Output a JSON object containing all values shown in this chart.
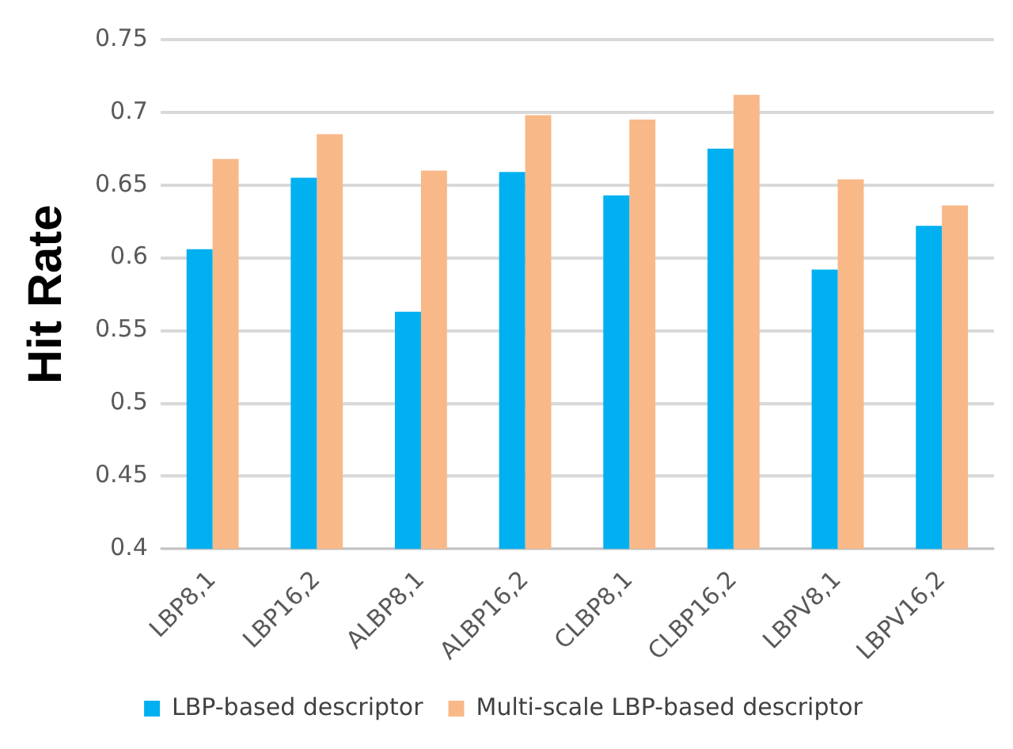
{
  "chart_data": {
    "type": "bar",
    "ylabel": "Hit Rate",
    "categories": [
      "LBP8,1",
      "LBP16,2",
      "ALBP8,1",
      "ALBP16,2",
      "CLBP8,1",
      "CLBP16,2",
      "LBPV8,1",
      "LBPV16,2"
    ],
    "series": [
      {
        "name": "LBP-based descriptor",
        "color": "#00b0f0",
        "values": [
          0.606,
          0.655,
          0.563,
          0.659,
          0.643,
          0.675,
          0.592,
          0.622
        ]
      },
      {
        "name": "Multi-scale LBP-based descriptor",
        "color": "#f8b888",
        "values": [
          0.668,
          0.685,
          0.66,
          0.698,
          0.695,
          0.712,
          0.654,
          0.636
        ]
      }
    ],
    "ylim": [
      0.4,
      0.75
    ],
    "yticks": [
      0.4,
      0.45,
      0.5,
      0.55,
      0.6,
      0.65,
      0.7,
      0.75
    ],
    "grid": "y",
    "legend": "bottom"
  }
}
